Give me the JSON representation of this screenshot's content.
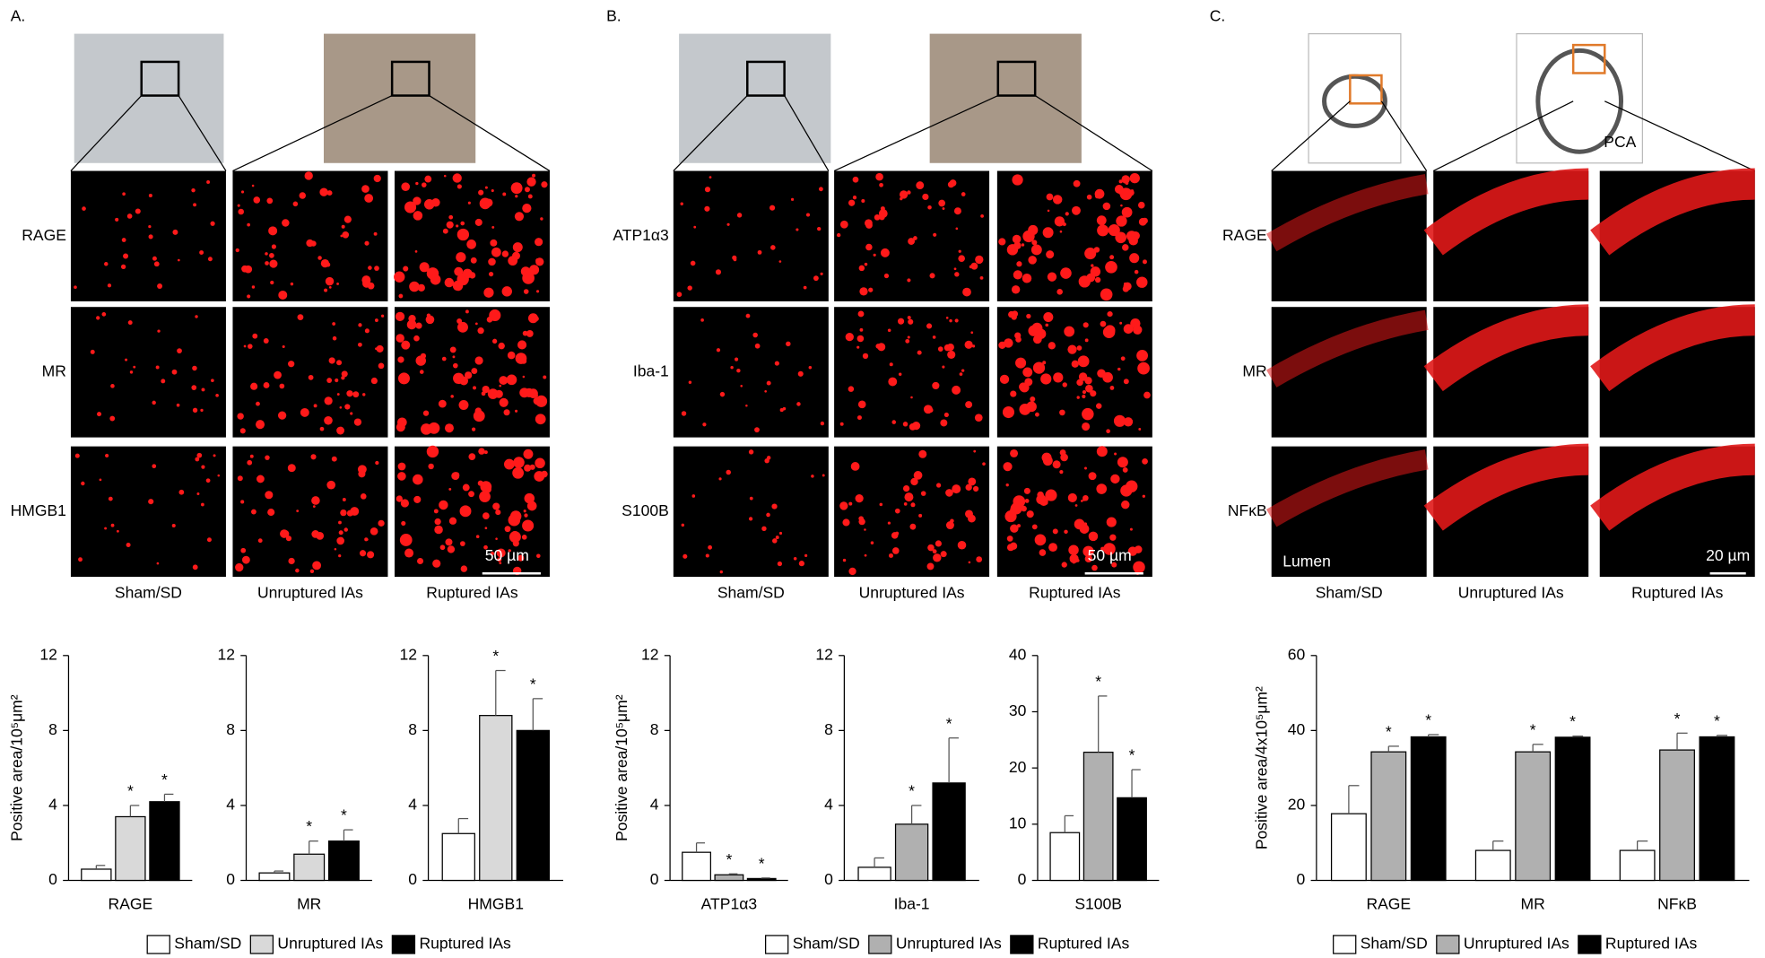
{
  "figure": {
    "panels": [
      {
        "label": "A.",
        "rows": [
          "RAGE",
          "MR",
          "HMGB1"
        ],
        "columns": [
          "Sham/SD",
          "Unruptured IAs",
          "Ruptured IAs"
        ],
        "scale_bar": "50 µm"
      },
      {
        "label": "B.",
        "rows": [
          "ATP1α3",
          "Iba-1",
          "S100B"
        ],
        "columns": [
          "Sham/SD",
          "Unruptured IAs",
          "Ruptured IAs"
        ],
        "scale_bar": "50 µm"
      },
      {
        "label": "C.",
        "rows": [
          "RAGE",
          "MR",
          "NFκB"
        ],
        "columns": [
          "Sham/SD",
          "Unruptured IAs",
          "Ruptured IAs"
        ],
        "scale_bar": "20 µm",
        "vessel_label": "PCA",
        "lumen_label": "Lumen"
      }
    ]
  },
  "chart_data": [
    {
      "type": "bar",
      "ylabel": "Positive area/10⁵μm²",
      "categories": [
        "RAGE",
        "MR",
        "HMGB1"
      ],
      "axes": [
        {
          "ylim": [
            0,
            12
          ],
          "yticks": [
            0,
            4,
            8,
            12
          ]
        },
        {
          "ylim": [
            0,
            12
          ],
          "yticks": [
            0,
            4,
            8,
            12
          ]
        },
        {
          "ylim": [
            0,
            12
          ],
          "yticks": [
            0,
            4,
            8,
            12
          ]
        }
      ],
      "series": [
        {
          "name": "Sham/SD",
          "color": "#ffffff",
          "values": [
            0.6,
            0.4,
            2.5
          ],
          "errors": [
            0.2,
            0.1,
            0.8
          ]
        },
        {
          "name": "Unruptured IAs",
          "color": "#d9d9d9",
          "values": [
            3.4,
            1.4,
            8.8
          ],
          "errors": [
            0.6,
            0.7,
            2.4
          ],
          "stars": [
            "*",
            "*",
            "*"
          ]
        },
        {
          "name": "Ruptured IAs",
          "color": "#000000",
          "values": [
            4.2,
            2.1,
            8.0
          ],
          "errors": [
            0.4,
            0.6,
            1.7
          ],
          "stars": [
            "*",
            "*",
            "*"
          ]
        }
      ]
    },
    {
      "type": "bar",
      "ylabel": "Positive area/10⁵μm²",
      "categories": [
        "ATP1α3",
        "Iba-1",
        "S100B"
      ],
      "axes": [
        {
          "ylim": [
            0,
            12
          ],
          "yticks": [
            0,
            4,
            8,
            12
          ]
        },
        {
          "ylim": [
            0,
            12
          ],
          "yticks": [
            0,
            4,
            8,
            12
          ]
        },
        {
          "ylim": [
            0,
            40
          ],
          "yticks": [
            0,
            10,
            20,
            30,
            40
          ]
        }
      ],
      "series": [
        {
          "name": "Sham/SD",
          "color": "#ffffff",
          "values": [
            1.5,
            0.7,
            8.5
          ],
          "errors": [
            0.5,
            0.5,
            3
          ]
        },
        {
          "name": "Unruptured IAs",
          "color": "#b0b0b0",
          "values": [
            0.3,
            3.0,
            22.8
          ],
          "errors": [
            0.05,
            1.0,
            10
          ],
          "stars": [
            "*",
            "*",
            "*"
          ]
        },
        {
          "name": "Ruptured IAs",
          "color": "#000000",
          "values": [
            0.1,
            5.2,
            14.7
          ],
          "errors": [
            0.03,
            2.4,
            5
          ],
          "stars": [
            "*",
            "*",
            "*"
          ]
        }
      ]
    },
    {
      "type": "bar",
      "ylabel": "Positive area/4x10⁵μm²",
      "categories": [
        "RAGE",
        "MR",
        "NFκB"
      ],
      "axes": [
        {
          "ylim": [
            0,
            60
          ],
          "yticks": [
            0,
            20,
            40,
            60
          ]
        }
      ],
      "series": [
        {
          "name": "Sham/SD",
          "color": "#ffffff",
          "values": [
            17.8,
            8,
            8
          ],
          "errors": [
            7.5,
            2.5,
            2.5
          ]
        },
        {
          "name": "Unruptured IAs",
          "color": "#b0b0b0",
          "values": [
            34.3,
            34.3,
            34.8
          ],
          "errors": [
            1.5,
            2,
            4.5
          ],
          "stars": [
            "*",
            "*",
            "*"
          ]
        },
        {
          "name": "Ruptured IAs",
          "color": "#000000",
          "values": [
            38.3,
            38.2,
            38.3
          ],
          "errors": [
            0.6,
            0.3,
            0.4
          ],
          "stars": [
            "*",
            "*",
            "*"
          ]
        }
      ]
    }
  ]
}
